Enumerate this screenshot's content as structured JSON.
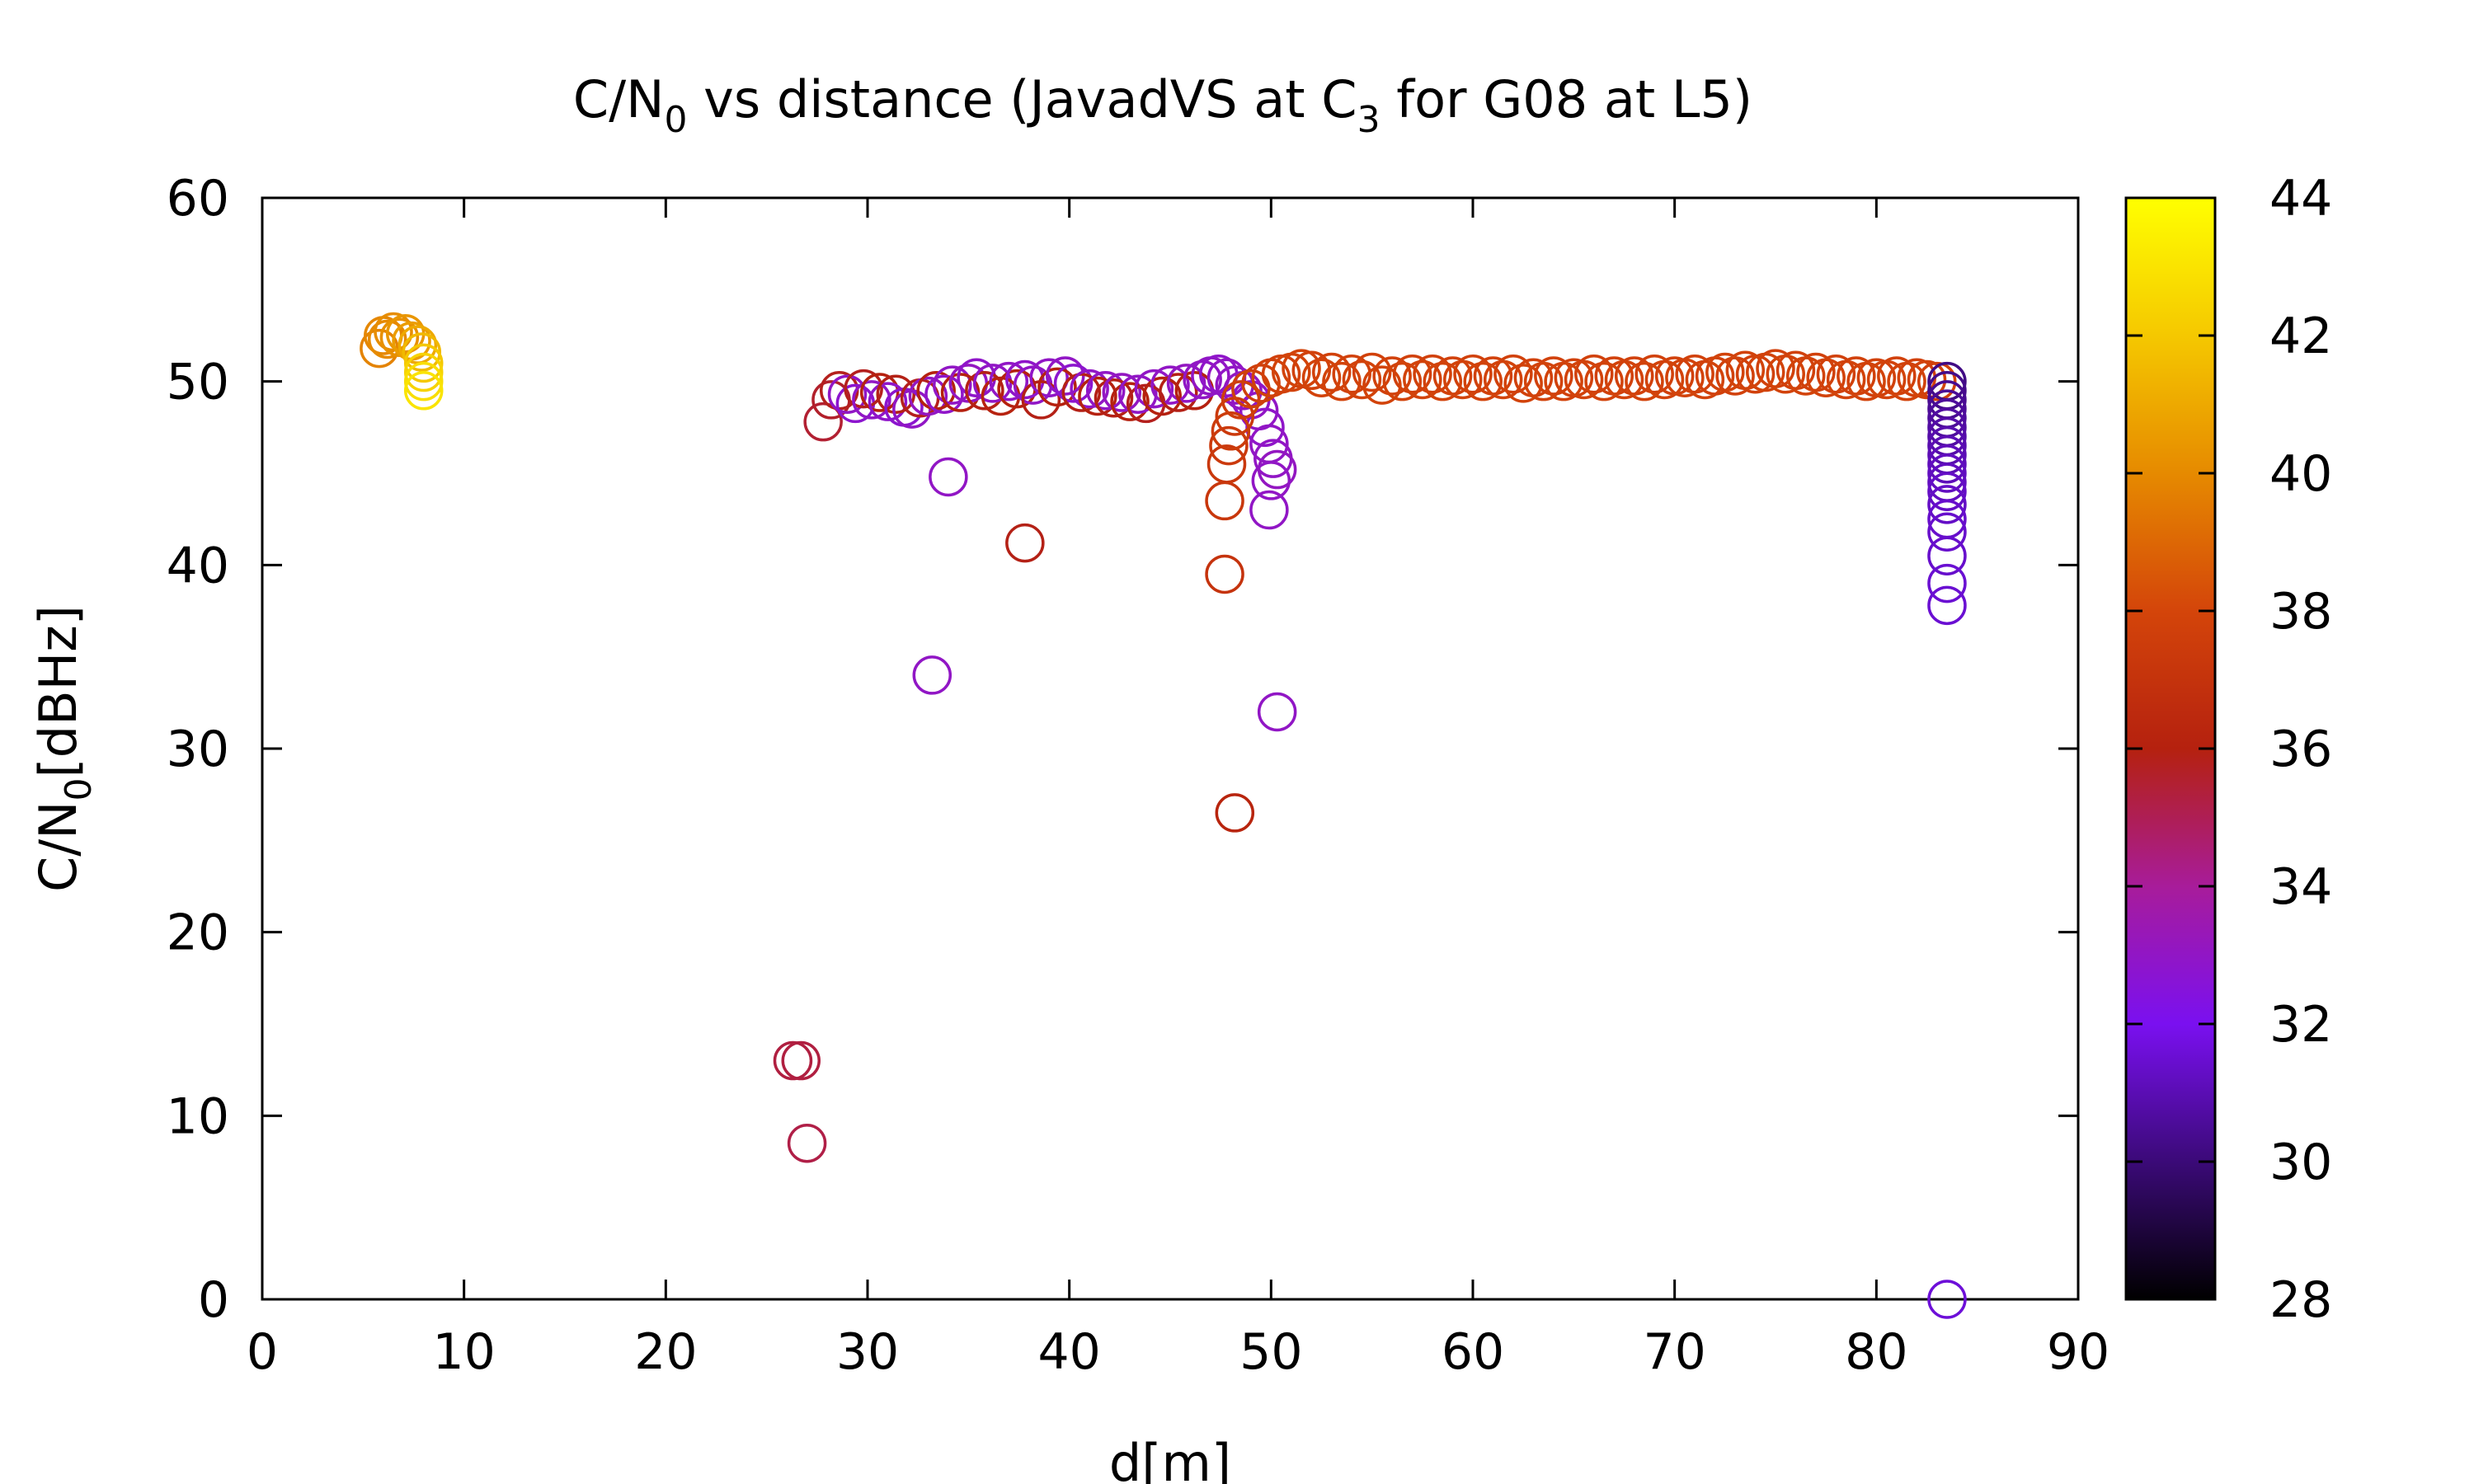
{
  "chart_data": {
    "type": "scatter",
    "title": {
      "prefix": "C/N",
      "sub1": "0",
      "middle": " vs distance (JavadVS at C",
      "sub2": "3",
      "suffix": " for G08 at L5)"
    },
    "xlabel": "d[m]",
    "ylabel": {
      "prefix": "C/N",
      "sub": "0",
      "suffix": "[dBHz]"
    },
    "xlim": [
      0,
      90
    ],
    "ylim": [
      0,
      60
    ],
    "xticks": [
      "0",
      "10",
      "20",
      "30",
      "40",
      "50",
      "60",
      "70",
      "80",
      "90"
    ],
    "yticks": [
      "0",
      "10",
      "20",
      "30",
      "40",
      "50",
      "60"
    ],
    "grid": false,
    "marker": "open-circle",
    "colorbar": {
      "range": [
        28,
        44
      ],
      "ticks": [
        "28",
        "30",
        "32",
        "34",
        "36",
        "38",
        "40",
        "42",
        "44"
      ],
      "palette": [
        "#000000",
        "#3b0a78",
        "#7a10f0",
        "#a81c9a",
        "#b5210f",
        "#d4450a",
        "#e68a00",
        "#f5c800",
        "#ffff00"
      ]
    },
    "points": [
      {
        "x": 5.8,
        "y": 51.8,
        "c": 39.8
      },
      {
        "x": 6.0,
        "y": 52.5,
        "c": 39.9
      },
      {
        "x": 6.2,
        "y": 52.3,
        "c": 40.0
      },
      {
        "x": 6.5,
        "y": 52.7,
        "c": 40.1
      },
      {
        "x": 6.8,
        "y": 52.4,
        "c": 40.2
      },
      {
        "x": 7.1,
        "y": 52.6,
        "c": 40.4
      },
      {
        "x": 7.4,
        "y": 52.2,
        "c": 40.6
      },
      {
        "x": 7.7,
        "y": 52.0,
        "c": 41.0
      },
      {
        "x": 7.9,
        "y": 51.6,
        "c": 41.5
      },
      {
        "x": 8.0,
        "y": 51.0,
        "c": 42.0
      },
      {
        "x": 8.0,
        "y": 50.5,
        "c": 42.4
      },
      {
        "x": 8.0,
        "y": 50.0,
        "c": 42.8
      },
      {
        "x": 8.0,
        "y": 49.5,
        "c": 43.0
      },
      {
        "x": 26.3,
        "y": 13.0,
        "c": 35.3
      },
      {
        "x": 26.7,
        "y": 13.0,
        "c": 35.3
      },
      {
        "x": 27.0,
        "y": 8.5,
        "c": 35.2
      },
      {
        "x": 27.8,
        "y": 47.8,
        "c": 35.5
      },
      {
        "x": 28.2,
        "y": 49.0,
        "c": 35.6
      },
      {
        "x": 28.6,
        "y": 49.5,
        "c": 35.8
      },
      {
        "x": 29.0,
        "y": 49.3,
        "c": 33.0
      },
      {
        "x": 29.4,
        "y": 48.8,
        "c": 32.8
      },
      {
        "x": 29.8,
        "y": 49.6,
        "c": 35.8
      },
      {
        "x": 30.2,
        "y": 49.0,
        "c": 33.0
      },
      {
        "x": 30.6,
        "y": 49.4,
        "c": 36.0
      },
      {
        "x": 31.0,
        "y": 48.9,
        "c": 32.9
      },
      {
        "x": 31.4,
        "y": 49.3,
        "c": 35.9
      },
      {
        "x": 31.8,
        "y": 48.6,
        "c": 32.8
      },
      {
        "x": 32.2,
        "y": 48.5,
        "c": 33.0
      },
      {
        "x": 32.6,
        "y": 49.1,
        "c": 35.8
      },
      {
        "x": 33.0,
        "y": 49.2,
        "c": 33.1
      },
      {
        "x": 33.4,
        "y": 49.5,
        "c": 36.0
      },
      {
        "x": 33.8,
        "y": 49.3,
        "c": 32.9
      },
      {
        "x": 34.2,
        "y": 49.8,
        "c": 33.0
      },
      {
        "x": 34.6,
        "y": 49.4,
        "c": 36.0
      },
      {
        "x": 35.0,
        "y": 49.9,
        "c": 33.1
      },
      {
        "x": 35.4,
        "y": 50.2,
        "c": 32.9
      },
      {
        "x": 35.8,
        "y": 49.5,
        "c": 35.9
      },
      {
        "x": 36.2,
        "y": 49.9,
        "c": 33.0
      },
      {
        "x": 36.6,
        "y": 49.2,
        "c": 36.1
      },
      {
        "x": 37.0,
        "y": 50.0,
        "c": 33.0
      },
      {
        "x": 37.4,
        "y": 49.6,
        "c": 36.0
      },
      {
        "x": 37.8,
        "y": 50.1,
        "c": 32.9
      },
      {
        "x": 38.2,
        "y": 49.8,
        "c": 33.0
      },
      {
        "x": 38.6,
        "y": 49.0,
        "c": 35.9
      },
      {
        "x": 39.0,
        "y": 50.2,
        "c": 33.0
      },
      {
        "x": 39.4,
        "y": 49.7,
        "c": 36.0
      },
      {
        "x": 39.8,
        "y": 50.3,
        "c": 33.0
      },
      {
        "x": 40.2,
        "y": 49.9,
        "c": 32.8
      },
      {
        "x": 40.6,
        "y": 49.4,
        "c": 35.9
      },
      {
        "x": 41.0,
        "y": 49.6,
        "c": 33.0
      },
      {
        "x": 41.4,
        "y": 49.2,
        "c": 36.0
      },
      {
        "x": 41.8,
        "y": 49.5,
        "c": 33.0
      },
      {
        "x": 42.2,
        "y": 49.1,
        "c": 35.9
      },
      {
        "x": 42.6,
        "y": 49.4,
        "c": 33.1
      },
      {
        "x": 43.0,
        "y": 48.9,
        "c": 36.0
      },
      {
        "x": 43.4,
        "y": 49.3,
        "c": 33.0
      },
      {
        "x": 43.8,
        "y": 48.8,
        "c": 35.8
      },
      {
        "x": 44.2,
        "y": 49.6,
        "c": 33.0
      },
      {
        "x": 44.6,
        "y": 49.2,
        "c": 36.0
      },
      {
        "x": 45.0,
        "y": 49.8,
        "c": 33.0
      },
      {
        "x": 45.4,
        "y": 49.4,
        "c": 35.9
      },
      {
        "x": 45.8,
        "y": 49.9,
        "c": 33.1
      },
      {
        "x": 46.2,
        "y": 49.5,
        "c": 36.0
      },
      {
        "x": 46.6,
        "y": 50.1,
        "c": 33.0
      },
      {
        "x": 47.0,
        "y": 50.3,
        "c": 33.0
      },
      {
        "x": 47.4,
        "y": 50.4,
        "c": 32.9
      },
      {
        "x": 47.8,
        "y": 50.2,
        "c": 33.0
      },
      {
        "x": 48.2,
        "y": 49.8,
        "c": 33.0
      },
      {
        "x": 48.6,
        "y": 49.5,
        "c": 33.1
      },
      {
        "x": 49.0,
        "y": 49.0,
        "c": 33.0
      },
      {
        "x": 49.4,
        "y": 48.4,
        "c": 33.0
      },
      {
        "x": 49.7,
        "y": 47.5,
        "c": 32.9
      },
      {
        "x": 49.9,
        "y": 46.6,
        "c": 33.0
      },
      {
        "x": 50.1,
        "y": 45.8,
        "c": 33.0
      },
      {
        "x": 50.3,
        "y": 45.2,
        "c": 33.1
      },
      {
        "x": 50.0,
        "y": 44.6,
        "c": 33.0
      },
      {
        "x": 49.9,
        "y": 43.0,
        "c": 33.0
      },
      {
        "x": 34.0,
        "y": 44.8,
        "c": 33.0
      },
      {
        "x": 37.8,
        "y": 41.2,
        "c": 35.9
      },
      {
        "x": 33.2,
        "y": 34.0,
        "c": 33.0
      },
      {
        "x": 50.3,
        "y": 32.0,
        "c": 33.0
      },
      {
        "x": 48.2,
        "y": 26.5,
        "c": 36.2
      },
      {
        "x": 47.7,
        "y": 39.5,
        "c": 37.0
      },
      {
        "x": 47.7,
        "y": 43.5,
        "c": 37.2
      },
      {
        "x": 47.8,
        "y": 45.5,
        "c": 37.3
      },
      {
        "x": 47.9,
        "y": 46.5,
        "c": 37.4
      },
      {
        "x": 48.0,
        "y": 47.3,
        "c": 37.5
      },
      {
        "x": 48.2,
        "y": 48.1,
        "c": 37.4
      },
      {
        "x": 48.5,
        "y": 49.0,
        "c": 37.6
      },
      {
        "x": 49.0,
        "y": 49.6,
        "c": 37.7
      },
      {
        "x": 49.5,
        "y": 49.9,
        "c": 37.7
      },
      {
        "x": 50.0,
        "y": 50.2,
        "c": 37.8
      },
      {
        "x": 50.5,
        "y": 50.4,
        "c": 37.8
      },
      {
        "x": 51.0,
        "y": 50.5,
        "c": 37.9
      },
      {
        "x": 51.5,
        "y": 50.7,
        "c": 37.9
      },
      {
        "x": 52.0,
        "y": 50.6,
        "c": 37.8
      },
      {
        "x": 52.5,
        "y": 50.2,
        "c": 37.9
      },
      {
        "x": 53.0,
        "y": 50.5,
        "c": 37.8
      },
      {
        "x": 53.5,
        "y": 50.0,
        "c": 37.9
      },
      {
        "x": 54.0,
        "y": 50.4,
        "c": 37.8
      },
      {
        "x": 54.5,
        "y": 50.1,
        "c": 37.9
      },
      {
        "x": 55.0,
        "y": 50.5,
        "c": 37.8
      },
      {
        "x": 55.5,
        "y": 49.8,
        "c": 37.9
      },
      {
        "x": 56.0,
        "y": 50.3,
        "c": 37.8
      },
      {
        "x": 56.5,
        "y": 50.0,
        "c": 37.9
      },
      {
        "x": 57.0,
        "y": 50.4,
        "c": 37.8
      },
      {
        "x": 57.5,
        "y": 50.1,
        "c": 37.9
      },
      {
        "x": 58.0,
        "y": 50.4,
        "c": 37.8
      },
      {
        "x": 58.5,
        "y": 50.0,
        "c": 37.9
      },
      {
        "x": 59.0,
        "y": 50.3,
        "c": 37.8
      },
      {
        "x": 59.5,
        "y": 50.1,
        "c": 37.9
      },
      {
        "x": 60.0,
        "y": 50.4,
        "c": 37.8
      },
      {
        "x": 60.5,
        "y": 50.0,
        "c": 37.9
      },
      {
        "x": 61.0,
        "y": 50.3,
        "c": 37.8
      },
      {
        "x": 61.5,
        "y": 50.1,
        "c": 37.9
      },
      {
        "x": 62.0,
        "y": 50.4,
        "c": 37.8
      },
      {
        "x": 62.5,
        "y": 49.9,
        "c": 37.9
      },
      {
        "x": 63.0,
        "y": 50.2,
        "c": 37.8
      },
      {
        "x": 63.5,
        "y": 50.0,
        "c": 37.9
      },
      {
        "x": 64.0,
        "y": 50.3,
        "c": 37.8
      },
      {
        "x": 64.5,
        "y": 50.0,
        "c": 37.9
      },
      {
        "x": 65.0,
        "y": 50.2,
        "c": 37.8
      },
      {
        "x": 65.5,
        "y": 50.1,
        "c": 37.9
      },
      {
        "x": 66.0,
        "y": 50.4,
        "c": 37.8
      },
      {
        "x": 66.5,
        "y": 50.0,
        "c": 37.9
      },
      {
        "x": 67.0,
        "y": 50.3,
        "c": 37.8
      },
      {
        "x": 67.5,
        "y": 50.1,
        "c": 37.9
      },
      {
        "x": 68.0,
        "y": 50.3,
        "c": 37.8
      },
      {
        "x": 68.5,
        "y": 50.0,
        "c": 37.9
      },
      {
        "x": 69.0,
        "y": 50.4,
        "c": 37.8
      },
      {
        "x": 69.5,
        "y": 50.1,
        "c": 37.9
      },
      {
        "x": 70.0,
        "y": 50.3,
        "c": 37.8
      },
      {
        "x": 70.5,
        "y": 50.2,
        "c": 37.9
      },
      {
        "x": 71.0,
        "y": 50.4,
        "c": 37.8
      },
      {
        "x": 71.5,
        "y": 50.1,
        "c": 37.9
      },
      {
        "x": 72.0,
        "y": 50.3,
        "c": 37.8
      },
      {
        "x": 72.5,
        "y": 50.5,
        "c": 37.9
      },
      {
        "x": 73.0,
        "y": 50.3,
        "c": 37.8
      },
      {
        "x": 73.5,
        "y": 50.6,
        "c": 37.9
      },
      {
        "x": 74.0,
        "y": 50.4,
        "c": 37.8
      },
      {
        "x": 74.5,
        "y": 50.5,
        "c": 37.9
      },
      {
        "x": 75.0,
        "y": 50.7,
        "c": 37.8
      },
      {
        "x": 75.5,
        "y": 50.4,
        "c": 37.9
      },
      {
        "x": 76.0,
        "y": 50.6,
        "c": 37.8
      },
      {
        "x": 76.5,
        "y": 50.3,
        "c": 37.9
      },
      {
        "x": 77.0,
        "y": 50.5,
        "c": 37.8
      },
      {
        "x": 77.5,
        "y": 50.2,
        "c": 37.9
      },
      {
        "x": 78.0,
        "y": 50.4,
        "c": 37.8
      },
      {
        "x": 78.5,
        "y": 50.1,
        "c": 37.9
      },
      {
        "x": 79.0,
        "y": 50.3,
        "c": 37.8
      },
      {
        "x": 79.5,
        "y": 50.0,
        "c": 37.9
      },
      {
        "x": 80.0,
        "y": 50.2,
        "c": 37.8
      },
      {
        "x": 80.5,
        "y": 50.1,
        "c": 37.9
      },
      {
        "x": 81.0,
        "y": 50.3,
        "c": 37.8
      },
      {
        "x": 81.5,
        "y": 50.0,
        "c": 37.9
      },
      {
        "x": 82.0,
        "y": 50.2,
        "c": 37.8
      },
      {
        "x": 82.5,
        "y": 50.1,
        "c": 37.9
      },
      {
        "x": 83.0,
        "y": 50.0,
        "c": 37.8
      },
      {
        "x": 83.5,
        "y": 50.0,
        "c": 30.2
      },
      {
        "x": 83.5,
        "y": 49.5,
        "c": 30.3
      },
      {
        "x": 83.5,
        "y": 49.0,
        "c": 30.4
      },
      {
        "x": 83.5,
        "y": 48.5,
        "c": 30.5
      },
      {
        "x": 83.5,
        "y": 48.0,
        "c": 30.6
      },
      {
        "x": 83.5,
        "y": 47.5,
        "c": 30.7
      },
      {
        "x": 83.5,
        "y": 47.0,
        "c": 30.8
      },
      {
        "x": 83.5,
        "y": 46.5,
        "c": 30.9
      },
      {
        "x": 83.5,
        "y": 46.0,
        "c": 31.0
      },
      {
        "x": 83.5,
        "y": 45.5,
        "c": 31.1
      },
      {
        "x": 83.5,
        "y": 45.0,
        "c": 31.2
      },
      {
        "x": 83.5,
        "y": 44.5,
        "c": 31.2
      },
      {
        "x": 83.5,
        "y": 44.0,
        "c": 31.3
      },
      {
        "x": 83.5,
        "y": 43.3,
        "c": 31.3
      },
      {
        "x": 83.5,
        "y": 42.5,
        "c": 31.4
      },
      {
        "x": 83.5,
        "y": 41.8,
        "c": 31.4
      },
      {
        "x": 83.5,
        "y": 40.5,
        "c": 31.4
      },
      {
        "x": 83.5,
        "y": 39.0,
        "c": 31.5
      },
      {
        "x": 83.5,
        "y": 37.8,
        "c": 31.5
      },
      {
        "x": 83.5,
        "y": 0.0,
        "c": 31.6
      }
    ]
  }
}
